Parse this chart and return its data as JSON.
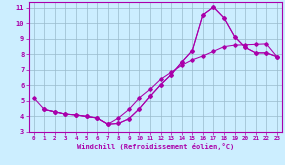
{
  "xlabel": "Windchill (Refroidissement éolien,°C)",
  "xlim": [
    -0.5,
    23.5
  ],
  "ylim": [
    3,
    11.4
  ],
  "xticks": [
    0,
    1,
    2,
    3,
    4,
    5,
    6,
    7,
    8,
    9,
    10,
    11,
    12,
    13,
    14,
    15,
    16,
    17,
    18,
    19,
    20,
    21,
    22,
    23
  ],
  "yticks": [
    3,
    4,
    5,
    6,
    7,
    8,
    9,
    10,
    11
  ],
  "bg_color": "#cceeff",
  "line_color": "#aa00aa",
  "grid_color": "#99bbcc",
  "c1x": [
    0,
    1,
    2,
    3,
    4,
    5,
    6,
    7,
    8,
    9,
    10,
    11,
    12,
    13,
    14,
    15,
    16,
    17,
    18,
    19,
    20,
    21,
    22,
    23
  ],
  "c1y": [
    5.2,
    4.45,
    4.3,
    4.15,
    4.1,
    4.0,
    3.9,
    3.5,
    3.55,
    3.85,
    4.5,
    5.3,
    6.05,
    6.7,
    7.5,
    8.25,
    10.55,
    11.05,
    10.35,
    9.15,
    8.45,
    8.1,
    8.1,
    7.85
  ],
  "c2x": [
    1,
    2,
    3,
    4,
    5,
    6,
    7,
    8,
    9,
    10,
    11,
    12,
    13,
    14,
    15,
    16,
    17,
    18,
    19,
    20,
    21,
    22,
    23
  ],
  "c2y": [
    4.45,
    4.3,
    4.15,
    4.1,
    4.0,
    3.9,
    3.5,
    3.9,
    4.45,
    5.2,
    5.75,
    6.4,
    6.85,
    7.3,
    7.65,
    7.9,
    8.2,
    8.5,
    8.6,
    8.62,
    8.65,
    8.68,
    7.85
  ],
  "c3x": [
    1,
    2,
    3,
    4,
    5,
    6,
    7,
    8,
    9,
    10,
    11,
    12,
    13,
    14,
    15,
    16,
    17,
    18,
    19,
    20,
    21,
    22,
    23
  ],
  "c3y": [
    4.45,
    4.3,
    4.15,
    4.1,
    4.0,
    3.9,
    3.5,
    3.55,
    3.85,
    4.5,
    5.3,
    6.05,
    6.7,
    7.5,
    8.25,
    10.55,
    11.05,
    10.35,
    9.15,
    8.45,
    8.1,
    8.1,
    7.85
  ]
}
